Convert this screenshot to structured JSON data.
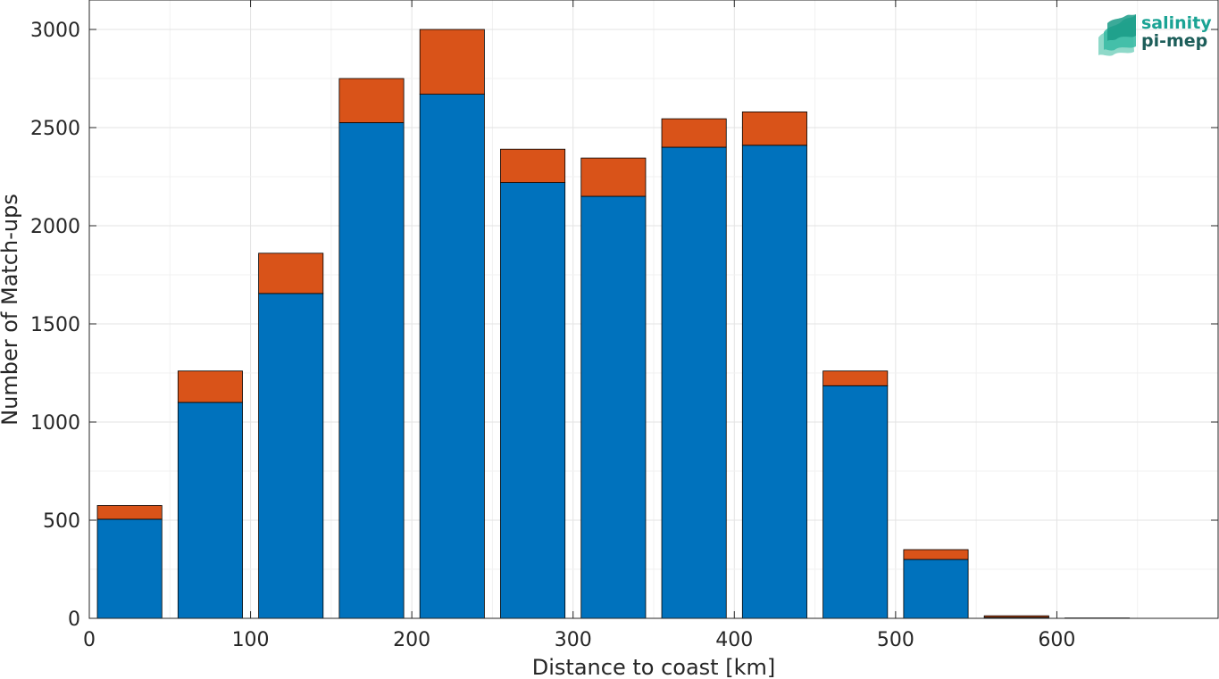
{
  "chart_data": {
    "type": "bar",
    "stacked": true,
    "xlabel": "Distance to coast [km]",
    "ylabel": "Number of Match-ups",
    "xlim": [
      0,
      700
    ],
    "ylim": [
      0,
      3000
    ],
    "bar_width_km": 40,
    "xticks": [
      0,
      100,
      200,
      300,
      400,
      500,
      600
    ],
    "yticks": [
      0,
      500,
      1000,
      1500,
      2000,
      2500,
      3000
    ],
    "grid": true,
    "x": [
      25,
      75,
      125,
      175,
      225,
      275,
      325,
      375,
      425,
      475,
      525,
      575,
      625
    ],
    "series": [
      {
        "color": "#0072BD",
        "values": [
          505,
          1100,
          1655,
          2525,
          2670,
          2220,
          2150,
          2400,
          2410,
          1185,
          300,
          5,
          0
        ]
      },
      {
        "color": "#D95319",
        "values": [
          70,
          160,
          205,
          225,
          330,
          170,
          195,
          145,
          170,
          75,
          50,
          8,
          2
        ]
      }
    ]
  },
  "logo": {
    "line1": "salinity",
    "line2": "pi-mep",
    "color_line1": "#1aa394",
    "color_line2": "#1d5e5a"
  }
}
